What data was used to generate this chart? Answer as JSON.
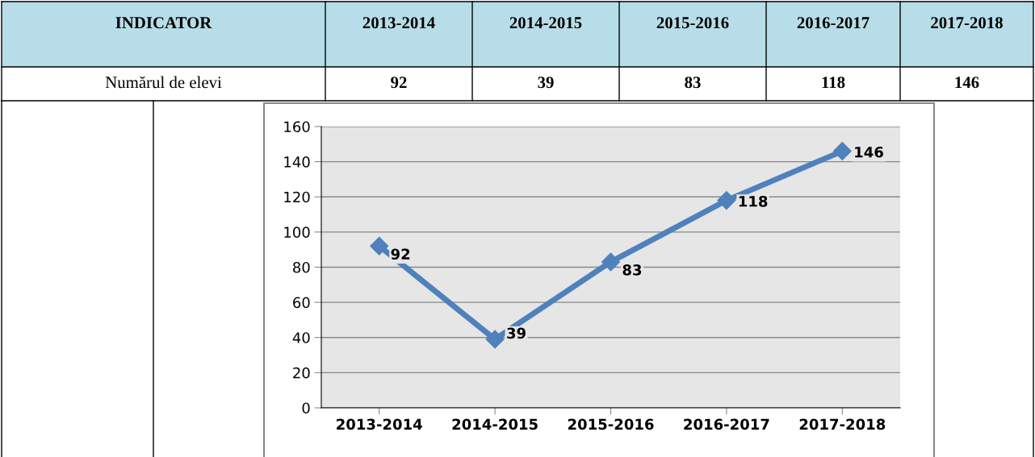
{
  "chart_data": [
    {
      "type": "other",
      "categories": [
        "2013-2014",
        "2014-2015",
        "2015-2016",
        "2016-2017",
        "2017-2018"
      ],
      "annotations": [
        "INDICATOR",
        "Numărul de elevi",
        "92",
        "39",
        "83",
        "118",
        "146"
      ]
    },
    {
      "type": "line",
      "categories": [
        "2013-2014",
        "2014-2015",
        "2015-2016",
        "2016-2017",
        "2017-2018"
      ],
      "values": [
        92,
        39,
        83,
        118,
        146
      ],
      "color": "#4f81bd",
      "ylim": [
        0,
        160
      ],
      "yticks": [
        0,
        20,
        40,
        60,
        80,
        100,
        120,
        140,
        160
      ],
      "grid": "y",
      "marker": "diamond",
      "line_style": "solid",
      "data_labels": true
    }
  ]
}
